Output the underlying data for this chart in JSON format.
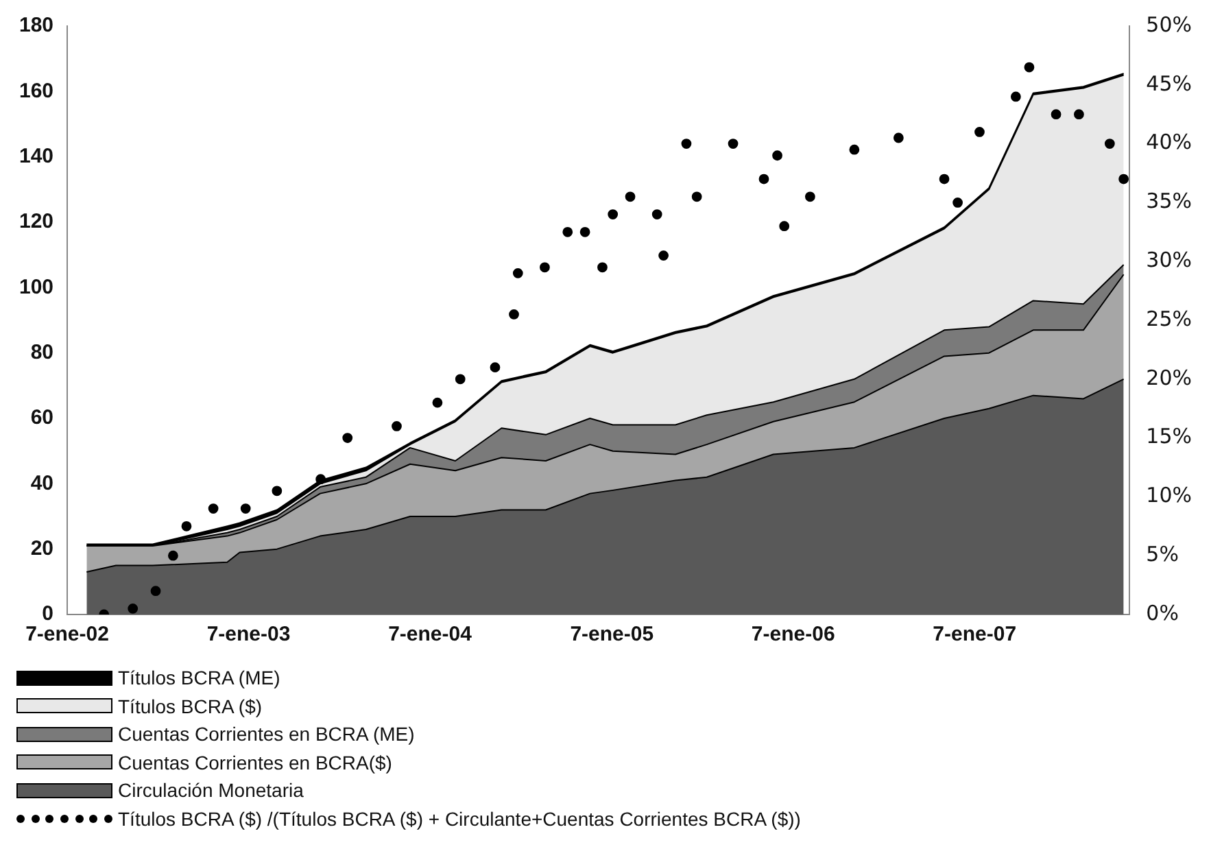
{
  "chart_data": {
    "type": "area",
    "stacked": true,
    "legend": "bottom",
    "grid": false,
    "x": [
      "2002-02-15",
      "2002-04-15",
      "2002-06-28",
      "2002-11-25",
      "2002-12-20",
      "2003-03-05",
      "2003-05-31",
      "2003-08-31",
      "2003-11-28",
      "2004-02-27",
      "2004-05-30",
      "2004-08-27",
      "2004-11-24",
      "2005-01-09",
      "2005-05-15",
      "2005-07-17",
      "2005-11-28",
      "2006-05-10",
      "2006-11-07",
      "2007-02-05",
      "2007-05-05",
      "2007-08-14",
      "2007-11-03"
    ],
    "xlim": [
      "2002-01-07",
      "2007-11-15"
    ],
    "xticks": [
      {
        "value": "2002-01-07",
        "label": "7-ene-02"
      },
      {
        "value": "2003-01-07",
        "label": "7-ene-03"
      },
      {
        "value": "2004-01-07",
        "label": "7-ene-04"
      },
      {
        "value": "2005-01-07",
        "label": "7-ene-05"
      },
      {
        "value": "2006-01-07",
        "label": "7-ene-06"
      },
      {
        "value": "2007-01-07",
        "label": "7-ene-07"
      }
    ],
    "ylim": [
      0,
      180
    ],
    "yticks": [
      0,
      20,
      40,
      60,
      80,
      100,
      120,
      140,
      160,
      180
    ],
    "y2lim": [
      0,
      50
    ],
    "y2ticks": [
      {
        "value": 0,
        "label": "0%"
      },
      {
        "value": 5,
        "label": "5%"
      },
      {
        "value": 10,
        "label": "10%"
      },
      {
        "value": 15,
        "label": "15%"
      },
      {
        "value": 20,
        "label": "20%"
      },
      {
        "value": 25,
        "label": "25%"
      },
      {
        "value": 30,
        "label": "30%"
      },
      {
        "value": 35,
        "label": "35%"
      },
      {
        "value": 40,
        "label": "40%"
      },
      {
        "value": 45,
        "label": "45%"
      },
      {
        "value": 50,
        "label": "50%"
      }
    ],
    "series": [
      {
        "name": "Circulación Monetaria",
        "color": "#595959",
        "values": [
          13,
          15,
          15,
          16,
          19,
          20,
          24,
          26,
          30,
          30,
          32,
          32,
          37,
          38,
          41,
          42,
          49,
          51,
          60,
          63,
          67,
          66,
          72
        ]
      },
      {
        "name": "Cuentas Corrientes en BCRA($)",
        "color": "#a6a6a6",
        "values": [
          8,
          6,
          6,
          8,
          6,
          9,
          13,
          14,
          16,
          14,
          16,
          15,
          15,
          12,
          8,
          10,
          10,
          14,
          19,
          17,
          20,
          21,
          32
        ]
      },
      {
        "name": "Cuentas Corrientes en BCRA (ME)",
        "color": "#7a7a7a",
        "values": [
          0,
          0,
          0,
          1,
          1,
          1,
          2,
          2,
          5,
          3,
          9,
          8,
          8,
          8,
          9,
          9,
          6,
          7,
          8,
          8,
          9,
          8,
          3
        ]
      },
      {
        "name": "Títulos BCRA ($)",
        "color": "#e8e8e8",
        "values": [
          0,
          0,
          0,
          1,
          1,
          1,
          1,
          2,
          1,
          12,
          14,
          19,
          22,
          22,
          28,
          27,
          32,
          32,
          31,
          42,
          63,
          66,
          58
        ]
      },
      {
        "name": "Títulos BCRA (ME)",
        "color": "#000000",
        "values": [
          0.5,
          0.5,
          0.5,
          1,
          1,
          1,
          1,
          1,
          0.5,
          0.5,
          0.5,
          0.5,
          0.5,
          0.5,
          0.5,
          0.5,
          0.5,
          0.5,
          0.5,
          0.5,
          0.5,
          0.5,
          0.5
        ]
      },
      {
        "name": "Títulos BCRA ($) /(Títulos BCRA ($) + Circulante+Cuentas Corrientes  BCRA ($))",
        "type": "scatter",
        "axis": "y2",
        "marker": "circle",
        "color": "#000000",
        "x": [
          "2002-03-22",
          "2002-05-19",
          "2002-07-04",
          "2002-08-08",
          "2002-09-04",
          "2002-10-28",
          "2003-01-01",
          "2003-03-05",
          "2003-06-01",
          "2003-07-25",
          "2003-11-01",
          "2004-01-22",
          "2004-03-08",
          "2004-05-17",
          "2004-06-24",
          "2004-07-02",
          "2004-08-25",
          "2004-10-10",
          "2004-11-14",
          "2004-12-19",
          "2005-01-09",
          "2005-02-13",
          "2005-04-08",
          "2005-04-21",
          "2005-06-06",
          "2005-06-27",
          "2005-09-08",
          "2005-11-09",
          "2005-12-06",
          "2005-12-20",
          "2006-02-10",
          "2006-05-10",
          "2006-08-07",
          "2006-11-07",
          "2006-12-04",
          "2007-01-17",
          "2007-03-31",
          "2007-04-27",
          "2007-06-20",
          "2007-08-05",
          "2007-10-06",
          "2007-11-03"
        ],
        "values": [
          0,
          0.5,
          2,
          5,
          7.5,
          9,
          9,
          10.5,
          11.5,
          15,
          16,
          18,
          20,
          21,
          25.5,
          29,
          29.5,
          32.5,
          32.5,
          29.5,
          34,
          35.5,
          34,
          30.5,
          40,
          35.5,
          40,
          37,
          39,
          33,
          35.5,
          39.5,
          40.5,
          37,
          35,
          41,
          44,
          46.5,
          42.5,
          42.5,
          40,
          37
        ]
      }
    ]
  }
}
